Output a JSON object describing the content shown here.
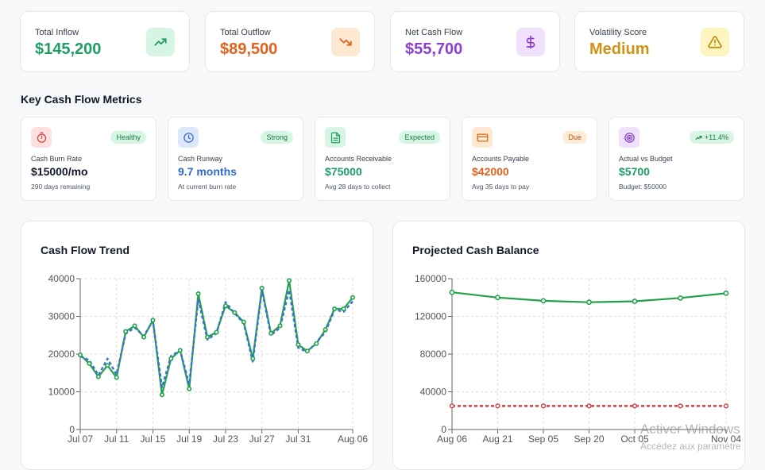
{
  "summary": [
    {
      "label": "Total Inflow",
      "value": "$145,200",
      "color": "#1f9d62",
      "icon": "trending-up-icon",
      "iconBg": "#d7f5e5"
    },
    {
      "label": "Total Outflow",
      "value": "$89,500",
      "color": "#e0621c",
      "icon": "trending-down-icon",
      "iconBg": "#fde9d2"
    },
    {
      "label": "Net Cash Flow",
      "value": "$55,700",
      "color": "#8a3fd1",
      "icon": "dollar-icon",
      "iconBg": "#efe0fb"
    },
    {
      "label": "Volatility Score",
      "value": "Medium",
      "color": "#cf9314",
      "icon": "warning-icon",
      "iconBg": "#fdf4bf"
    }
  ],
  "metrics_title": "Key Cash Flow Metrics",
  "metrics": [
    {
      "label": "Cash Burn Rate",
      "value": "$15000/mo",
      "sub": "290 days remaining",
      "badge": "Healthy",
      "valueColor": "#111827",
      "icon": "timer-icon",
      "iconBg": "#fde0e0",
      "iconColor": "#dc3b3b",
      "badgeBg": "#d6f5e2",
      "badgeColor": "#1b7a45"
    },
    {
      "label": "Cash Runway",
      "value": "9.7 months",
      "sub": "At current burn rate",
      "badge": "Strong",
      "valueColor": "#2f6ad0",
      "icon": "clock-icon",
      "iconBg": "#dde8fb",
      "iconColor": "#2f6ad0",
      "badgeBg": "#d6f5e2",
      "badgeColor": "#1b7a45"
    },
    {
      "label": "Accounts Receivable",
      "value": "$75000",
      "sub": "Avg 28 days to collect",
      "badge": "Expected",
      "valueColor": "#1f9d62",
      "icon": "document-icon",
      "iconBg": "#d7f5e5",
      "iconColor": "#1f9d62",
      "badgeBg": "#d6f5e2",
      "badgeColor": "#1b7a45"
    },
    {
      "label": "Accounts Payable",
      "value": "$42000",
      "sub": "Avg 35 days to pay",
      "badge": "Due",
      "valueColor": "#e0621c",
      "icon": "credit-card-icon",
      "iconBg": "#fde9d2",
      "iconColor": "#e0621c",
      "badgeBg": "#fdebd3",
      "badgeColor": "#b4531a"
    },
    {
      "label": "Actual vs Budget",
      "value": "$5700",
      "sub": "Budget: $50000",
      "badge": "+11.4%",
      "valueColor": "#1f9d62",
      "icon": "target-icon",
      "iconBg": "#efe0fb",
      "iconColor": "#8a3fd1",
      "badgeBg": "#d6f5e2",
      "badgeColor": "#1b7a45"
    }
  ],
  "chart_data": [
    {
      "type": "line",
      "title": "Cash Flow Trend",
      "x_tick_labels": [
        "Jul 07",
        "Jul 11",
        "Jul 15",
        "Jul 19",
        "Jul 23",
        "Jul 27",
        "Jul 31",
        "Aug 06"
      ],
      "ylim": [
        0,
        40000
      ],
      "y_ticks": [
        0,
        10000,
        20000,
        30000,
        40000
      ],
      "grid": true,
      "series": [
        {
          "style": "solid",
          "color": "#22a24a",
          "values": [
            19800,
            17500,
            14000,
            17000,
            13800,
            26000,
            27500,
            24500,
            29000,
            9200,
            18800,
            21000,
            10800,
            36000,
            24500,
            25800,
            32800,
            31000,
            28500,
            18800,
            37500,
            25500,
            27500,
            39500,
            22500,
            20800,
            22800,
            26500,
            32000,
            32000,
            35000
          ]
        },
        {
          "style": "dashed",
          "color": "#3b6fd6",
          "values": [
            19400,
            18400,
            14400,
            18800,
            14600,
            25400,
            27000,
            24800,
            28800,
            11200,
            19500,
            21000,
            12000,
            34500,
            23800,
            25500,
            33800,
            30800,
            28200,
            18000,
            37000,
            25000,
            27000,
            37000,
            21700,
            20500,
            23200,
            25800,
            31800,
            31200,
            34000
          ]
        }
      ]
    },
    {
      "type": "line",
      "title": "Projected Cash Balance",
      "x_tick_labels": [
        "Aug 06",
        "Aug 21",
        "Sep 05",
        "Sep 20",
        "Oct 05",
        "Nov 04"
      ],
      "ylim": [
        0,
        160000
      ],
      "y_ticks": [
        0,
        40000,
        80000,
        120000,
        160000
      ],
      "grid": true,
      "series": [
        {
          "style": "solid",
          "color": "#22a24a",
          "values": [
            145500,
            140000,
            136500,
            135000,
            136000,
            139500,
            144500
          ]
        },
        {
          "style": "dashed",
          "color": "#d13a3a",
          "values": [
            25000,
            25000,
            25000,
            25000,
            25000,
            25000,
            25000
          ]
        }
      ]
    }
  ],
  "watermark": {
    "line1": "Activer Windows",
    "line2": "Accédez aux paramètre"
  }
}
